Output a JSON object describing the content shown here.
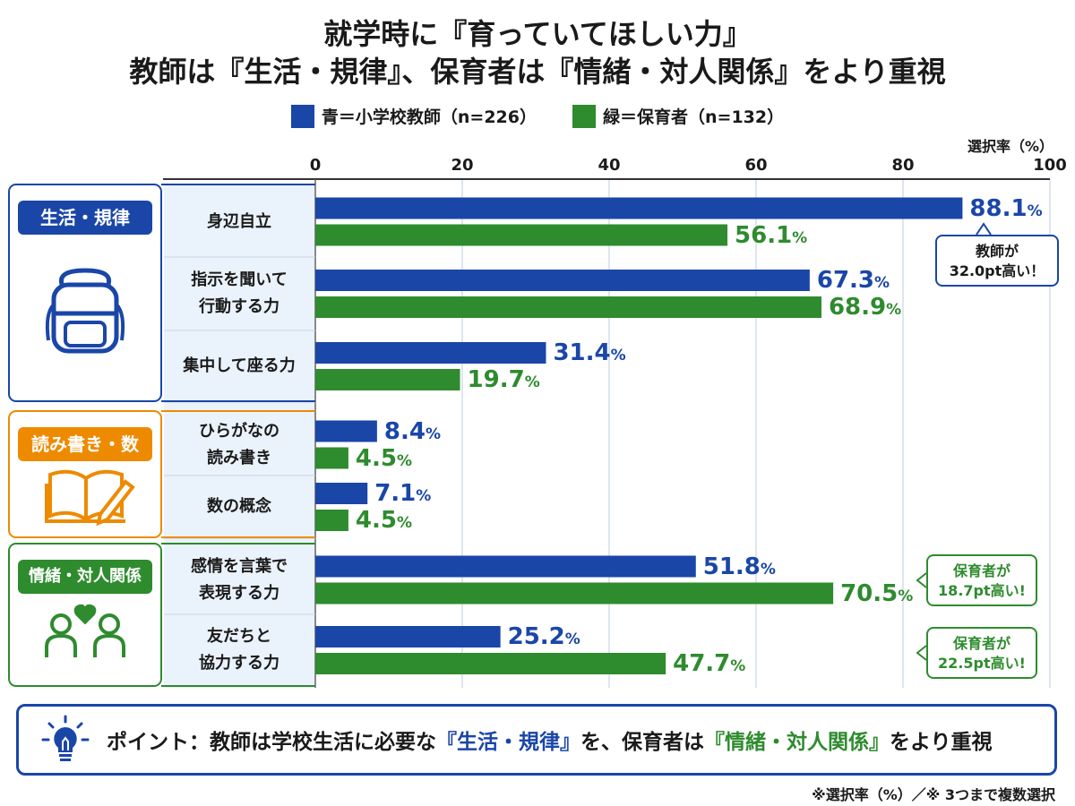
{
  "title_line1": "就学時に『育っていてほしい力』",
  "title_line2": "教師は『生活・規律』、保育者は『情緒・対人関係』をより重視",
  "legend": {
    "teacher": "青＝小学校教師（n=226）",
    "childcare": "緑＝保育者（n=132）"
  },
  "axis_unit": "選択率（%）",
  "groups": [
    {
      "label": "生活・規律",
      "color": "#1a46a8",
      "icon": "backpack-icon"
    },
    {
      "label": "読み書き・数",
      "color": "#ee8a00",
      "icon": "book-pencil-icon"
    },
    {
      "label": "情緒・対人関係",
      "color": "#2e8b2e",
      "icon": "people-heart-icon"
    }
  ],
  "category_labels": [
    [
      "身辺自立"
    ],
    [
      "指示を聞いて",
      "行動する力"
    ],
    [
      "集中して座る力"
    ],
    [
      "ひらがなの",
      "読み書き"
    ],
    [
      "数の概念"
    ],
    [
      "感情を言葉で",
      "表現する力"
    ],
    [
      "友だちと",
      "協力する力"
    ]
  ],
  "value_labels": {
    "teacher": [
      "88.1",
      "67.3",
      "31.4",
      "8.4",
      "7.1",
      "51.8",
      "25.2"
    ],
    "childcare": [
      "56.1",
      "68.9",
      "19.7",
      "4.5",
      "4.5",
      "70.5",
      "47.7"
    ],
    "percent_sign": "%"
  },
  "callouts": [
    {
      "line1": "教師が",
      "line2": "32.0pt高い！",
      "color": "#1a46a8"
    },
    {
      "line1": "保育者が",
      "line2": "18.7pt高い!",
      "color": "#2e8b2e"
    },
    {
      "line1": "保育者が",
      "line2": "22.5pt高い!",
      "color": "#2e8b2e"
    }
  ],
  "point": {
    "prefix": "ポイント：教師は学校生活に必要な",
    "highlight1": "『生活・規律』",
    "middle": "を、保育者は",
    "highlight2": "『情緒・対人関係』",
    "suffix": "をより重視"
  },
  "footnote": "※選択率（%）／※ 3つまで複数選択",
  "colors": {
    "teacher": "#1a46a8",
    "childcare": "#2e8b2e",
    "orange": "#ee8a00",
    "panel_bg": "#eaf2fb"
  },
  "chart_data": {
    "type": "bar",
    "orientation": "horizontal",
    "title": "就学時に『育っていてほしい力』 教師は『生活・規律』、保育者は『情緒・対人関係』をより重視",
    "xlabel": "選択率（%）",
    "xlim": [
      0,
      100
    ],
    "ticks": [
      0,
      20,
      40,
      60,
      80,
      100
    ],
    "categories": [
      "身辺自立",
      "指示を聞いて行動する力",
      "集中して座る力",
      "ひらがなの読み書き",
      "数の概念",
      "感情を言葉で表現する力",
      "友だちと協力する力"
    ],
    "series": [
      {
        "name": "青＝小学校教師（n=226）",
        "values": [
          88.1,
          67.3,
          31.4,
          8.4,
          7.1,
          51.8,
          25.2
        ]
      },
      {
        "name": "緑＝保育者（n=132）",
        "values": [
          56.1,
          68.9,
          19.7,
          4.5,
          4.5,
          70.5,
          47.7
        ]
      }
    ],
    "grid": true,
    "legend": "top-center"
  }
}
